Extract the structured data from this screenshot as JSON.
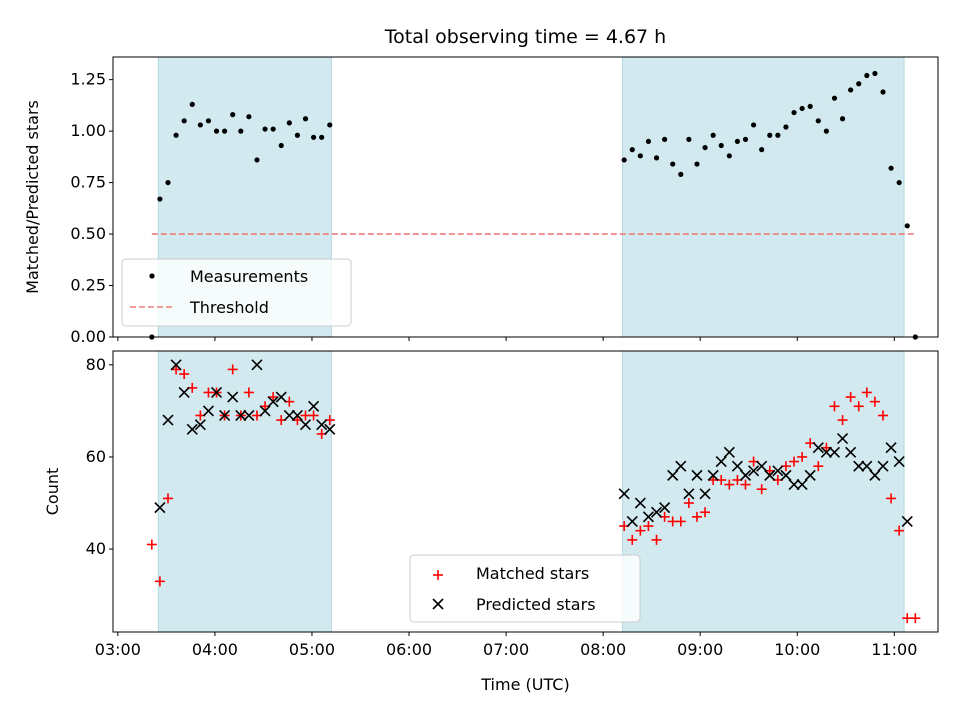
{
  "chart_data": [
    {
      "type": "scatter",
      "title": "Total observing time = 4.67 h",
      "xlabel": "",
      "ylabel": "Matched/Predicted stars",
      "ylim": [
        0,
        1.36
      ],
      "yticks": [
        0,
        0.25,
        0.5,
        0.75,
        1.0,
        1.25
      ],
      "ytick_labels": [
        "0.00",
        "0.25",
        "0.50",
        "0.75",
        "1.00",
        "1.25"
      ],
      "shaded_intervals": [
        [
          "03:25",
          "05:12"
        ],
        [
          "08:12",
          "11:06"
        ]
      ],
      "shade_color": "#d2e9ef",
      "threshold": {
        "name": "Threshold",
        "y": 0.5,
        "x_range": [
          "03:21",
          "11:12"
        ],
        "color": "#f07a7a"
      },
      "series": [
        {
          "name": "Measurements",
          "marker": "dot",
          "color": "#000000",
          "points": [
            [
              "03:21",
              0.0
            ],
            [
              "03:26",
              0.67
            ],
            [
              "03:31",
              0.75
            ],
            [
              "03:36",
              0.98
            ],
            [
              "03:41",
              1.05
            ],
            [
              "03:46",
              1.13
            ],
            [
              "03:51",
              1.03
            ],
            [
              "03:56",
              1.05
            ],
            [
              "04:01",
              1.0
            ],
            [
              "04:06",
              1.0
            ],
            [
              "04:11",
              1.08
            ],
            [
              "04:16",
              1.0
            ],
            [
              "04:21",
              1.07
            ],
            [
              "04:26",
              0.86
            ],
            [
              "04:31",
              1.01
            ],
            [
              "04:36",
              1.01
            ],
            [
              "04:41",
              0.93
            ],
            [
              "04:46",
              1.04
            ],
            [
              "04:51",
              0.98
            ],
            [
              "04:56",
              1.06
            ],
            [
              "05:01",
              0.97
            ],
            [
              "05:06",
              0.97
            ],
            [
              "05:11",
              1.03
            ],
            [
              "08:13",
              0.86
            ],
            [
              "08:18",
              0.91
            ],
            [
              "08:23",
              0.88
            ],
            [
              "08:28",
              0.95
            ],
            [
              "08:33",
              0.87
            ],
            [
              "08:38",
              0.96
            ],
            [
              "08:43",
              0.84
            ],
            [
              "08:48",
              0.79
            ],
            [
              "08:53",
              0.96
            ],
            [
              "08:58",
              0.84
            ],
            [
              "09:03",
              0.92
            ],
            [
              "09:08",
              0.98
            ],
            [
              "09:13",
              0.93
            ],
            [
              "09:18",
              0.88
            ],
            [
              "09:23",
              0.95
            ],
            [
              "09:28",
              0.96
            ],
            [
              "09:33",
              1.03
            ],
            [
              "09:38",
              0.91
            ],
            [
              "09:43",
              0.98
            ],
            [
              "09:48",
              0.98
            ],
            [
              "09:53",
              1.02
            ],
            [
              "09:58",
              1.09
            ],
            [
              "10:03",
              1.11
            ],
            [
              "10:08",
              1.12
            ],
            [
              "10:13",
              1.05
            ],
            [
              "10:18",
              1.0
            ],
            [
              "10:23",
              1.16
            ],
            [
              "10:28",
              1.06
            ],
            [
              "10:33",
              1.2
            ],
            [
              "10:38",
              1.23
            ],
            [
              "10:43",
              1.27
            ],
            [
              "10:48",
              1.28
            ],
            [
              "10:53",
              1.19
            ],
            [
              "10:58",
              0.82
            ],
            [
              "11:03",
              0.75
            ],
            [
              "11:08",
              0.54
            ],
            [
              "11:13",
              0.0
            ]
          ]
        }
      ],
      "legend": {
        "placement": "lower-left",
        "entries": [
          "Measurements",
          "Threshold"
        ]
      }
    },
    {
      "type": "scatter",
      "title": "",
      "xlabel": "Time (UTC)",
      "ylabel": "Count",
      "xlim": [
        "02:57",
        "11:27"
      ],
      "xticks": [
        "03:00",
        "04:00",
        "05:00",
        "06:00",
        "07:00",
        "08:00",
        "09:00",
        "10:00",
        "11:00"
      ],
      "ylim": [
        22,
        83
      ],
      "yticks": [
        40,
        60,
        80
      ],
      "shaded_intervals": [
        [
          "03:25",
          "05:12"
        ],
        [
          "08:12",
          "11:06"
        ]
      ],
      "series": [
        {
          "name": "Matched stars",
          "marker": "plus",
          "color": "#ff0000",
          "points": [
            [
              "03:21",
              41
            ],
            [
              "03:26",
              33
            ],
            [
              "03:31",
              51
            ],
            [
              "03:36",
              79
            ],
            [
              "03:41",
              78
            ],
            [
              "03:46",
              75
            ],
            [
              "03:51",
              69
            ],
            [
              "03:56",
              74
            ],
            [
              "04:01",
              74
            ],
            [
              "04:06",
              69
            ],
            [
              "04:11",
              79
            ],
            [
              "04:16",
              69
            ],
            [
              "04:21",
              74
            ],
            [
              "04:26",
              69
            ],
            [
              "04:31",
              71
            ],
            [
              "04:36",
              73
            ],
            [
              "04:41",
              68
            ],
            [
              "04:46",
              72
            ],
            [
              "04:51",
              68
            ],
            [
              "04:56",
              69
            ],
            [
              "05:01",
              69
            ],
            [
              "05:06",
              65
            ],
            [
              "05:11",
              68
            ],
            [
              "08:13",
              45
            ],
            [
              "08:18",
              42
            ],
            [
              "08:23",
              44
            ],
            [
              "08:28",
              45
            ],
            [
              "08:33",
              42
            ],
            [
              "08:38",
              47
            ],
            [
              "08:43",
              46
            ],
            [
              "08:48",
              46
            ],
            [
              "08:53",
              50
            ],
            [
              "08:58",
              47
            ],
            [
              "09:03",
              48
            ],
            [
              "09:08",
              55
            ],
            [
              "09:13",
              55
            ],
            [
              "09:18",
              54
            ],
            [
              "09:23",
              55
            ],
            [
              "09:28",
              54
            ],
            [
              "09:33",
              59
            ],
            [
              "09:38",
              53
            ],
            [
              "09:43",
              57
            ],
            [
              "09:48",
              55
            ],
            [
              "09:53",
              58
            ],
            [
              "09:58",
              59
            ],
            [
              "10:03",
              60
            ],
            [
              "10:08",
              63
            ],
            [
              "10:13",
              58
            ],
            [
              "10:18",
              62
            ],
            [
              "10:23",
              71
            ],
            [
              "10:28",
              68
            ],
            [
              "10:33",
              73
            ],
            [
              "10:38",
              71
            ],
            [
              "10:43",
              74
            ],
            [
              "10:48",
              72
            ],
            [
              "10:53",
              69
            ],
            [
              "10:58",
              51
            ],
            [
              "11:03",
              44
            ],
            [
              "11:08",
              25
            ],
            [
              "11:13",
              25
            ]
          ]
        },
        {
          "name": "Predicted stars",
          "marker": "x",
          "color": "#000000",
          "points": [
            [
              "03:26",
              49
            ],
            [
              "03:31",
              68
            ],
            [
              "03:36",
              80
            ],
            [
              "03:41",
              74
            ],
            [
              "03:46",
              66
            ],
            [
              "03:51",
              67
            ],
            [
              "03:56",
              70
            ],
            [
              "04:01",
              74
            ],
            [
              "04:06",
              69
            ],
            [
              "04:11",
              73
            ],
            [
              "04:16",
              69
            ],
            [
              "04:21",
              69
            ],
            [
              "04:26",
              80
            ],
            [
              "04:31",
              70
            ],
            [
              "04:36",
              72
            ],
            [
              "04:41",
              73
            ],
            [
              "04:46",
              69
            ],
            [
              "04:51",
              69
            ],
            [
              "04:56",
              67
            ],
            [
              "05:01",
              71
            ],
            [
              "05:06",
              67
            ],
            [
              "05:11",
              66
            ],
            [
              "08:13",
              52
            ],
            [
              "08:18",
              46
            ],
            [
              "08:23",
              50
            ],
            [
              "08:28",
              47
            ],
            [
              "08:33",
              48
            ],
            [
              "08:38",
              49
            ],
            [
              "08:43",
              56
            ],
            [
              "08:48",
              58
            ],
            [
              "08:53",
              52
            ],
            [
              "08:58",
              56
            ],
            [
              "09:03",
              52
            ],
            [
              "09:08",
              56
            ],
            [
              "09:13",
              59
            ],
            [
              "09:18",
              61
            ],
            [
              "09:23",
              58
            ],
            [
              "09:28",
              56
            ],
            [
              "09:33",
              57
            ],
            [
              "09:38",
              58
            ],
            [
              "09:43",
              56
            ],
            [
              "09:48",
              57
            ],
            [
              "09:53",
              56
            ],
            [
              "09:58",
              54
            ],
            [
              "10:03",
              54
            ],
            [
              "10:08",
              56
            ],
            [
              "10:13",
              62
            ],
            [
              "10:18",
              61
            ],
            [
              "10:23",
              61
            ],
            [
              "10:28",
              64
            ],
            [
              "10:33",
              61
            ],
            [
              "10:38",
              58
            ],
            [
              "10:43",
              58
            ],
            [
              "10:48",
              56
            ],
            [
              "10:53",
              58
            ],
            [
              "10:58",
              62
            ],
            [
              "11:03",
              59
            ],
            [
              "11:08",
              46
            ]
          ]
        }
      ],
      "legend": {
        "placement": "lower-center",
        "entries": [
          "Matched stars",
          "Predicted stars"
        ]
      }
    }
  ]
}
